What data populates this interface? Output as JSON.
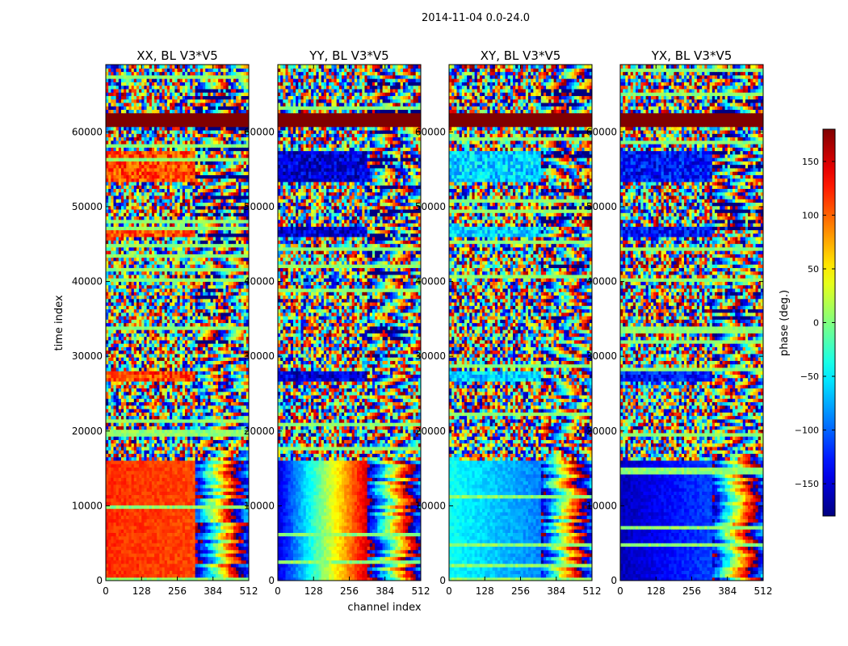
{
  "figure": {
    "title": "2014-11-04 0.0-24.0"
  },
  "chart_data": {
    "type": "heatmap",
    "xlabel": "channel index",
    "ylabel": "time index",
    "x_range": [
      0,
      512
    ],
    "y_range": [
      0,
      69000
    ],
    "x_ticks": [
      0,
      128,
      256,
      384,
      512
    ],
    "y_ticks": [
      0,
      10000,
      20000,
      30000,
      40000,
      50000,
      60000
    ],
    "panels": [
      {
        "title": "XX, BL V3*V5",
        "low_phase": 120,
        "low_phase_right": 110,
        "band_phase": 110,
        "striped_from_channel": 320
      },
      {
        "title": "YY, BL V3*V5",
        "low_phase": -150,
        "low_phase_right": 150,
        "band_phase": -150,
        "striped_from_channel": 320
      },
      {
        "title": "XY, BL V3*V5",
        "low_phase": -40,
        "low_phase_right": -90,
        "band_phase": -60,
        "striped_from_channel": 330
      },
      {
        "title": "YX, BL V3*V5",
        "low_phase": -160,
        "low_phase_right": -110,
        "band_phase": -130,
        "striped_from_channel": 330
      }
    ],
    "saturated_band": {
      "from": 60800,
      "to": 62500,
      "phase": 180
    },
    "bright_bands": [
      {
        "from": 26500,
        "to": 28000
      },
      {
        "from": 45800,
        "to": 47300
      },
      {
        "from": 53500,
        "to": 57500
      }
    ],
    "low_region": {
      "from": 0,
      "to": 16200
    },
    "colorbar": {
      "label": "phase (deg.)",
      "range": [
        -180,
        180
      ],
      "ticks": [
        150,
        100,
        50,
        0,
        -50,
        -100,
        -150
      ],
      "colormap": "jet"
    }
  }
}
